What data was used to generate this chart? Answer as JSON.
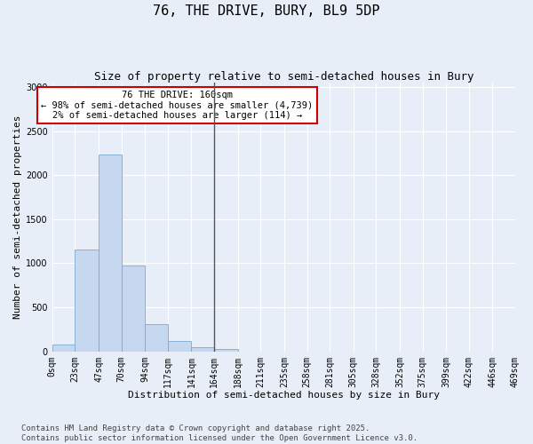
{
  "title": "76, THE DRIVE, BURY, BL9 5DP",
  "subtitle": "Size of property relative to semi-detached houses in Bury",
  "xlabel": "Distribution of semi-detached houses by size in Bury",
  "ylabel": "Number of semi-detached properties",
  "footer_line1": "Contains HM Land Registry data © Crown copyright and database right 2025.",
  "footer_line2": "Contains public sector information licensed under the Open Government Licence v3.0.",
  "annotation_title": "76 THE DRIVE: 160sqm",
  "annotation_line2": "← 98% of semi-detached houses are smaller (4,739)",
  "annotation_line3": "2% of semi-detached houses are larger (114) →",
  "property_line_x": 164,
  "bin_edges": [
    0,
    23,
    47,
    70,
    94,
    117,
    141,
    164,
    188,
    211,
    235,
    258,
    281,
    305,
    328,
    352,
    375,
    399,
    422,
    446,
    469
  ],
  "bin_labels": [
    "0sqm",
    "23sqm",
    "47sqm",
    "70sqm",
    "94sqm",
    "117sqm",
    "141sqm",
    "164sqm",
    "188sqm",
    "211sqm",
    "235sqm",
    "258sqm",
    "281sqm",
    "305sqm",
    "328sqm",
    "352sqm",
    "375sqm",
    "399sqm",
    "422sqm",
    "446sqm",
    "469sqm"
  ],
  "bar_heights": [
    75,
    1160,
    2230,
    975,
    305,
    120,
    50,
    30,
    0,
    0,
    0,
    0,
    0,
    0,
    0,
    0,
    0,
    0,
    0,
    0
  ],
  "bar_color": "#c5d8f0",
  "bar_edge_color": "#7aaad0",
  "vline_color": "#555555",
  "annotation_box_edge": "#cc0000",
  "annotation_box_face": "#ffffff",
  "ylim": [
    0,
    3050
  ],
  "yticks": [
    0,
    500,
    1000,
    1500,
    2000,
    2500,
    3000
  ],
  "bg_color": "#e8eef8",
  "grid_color": "#ffffff",
  "title_fontsize": 11,
  "subtitle_fontsize": 9,
  "axis_label_fontsize": 8,
  "tick_fontsize": 7,
  "annotation_fontsize": 7.5,
  "footer_fontsize": 6.5
}
